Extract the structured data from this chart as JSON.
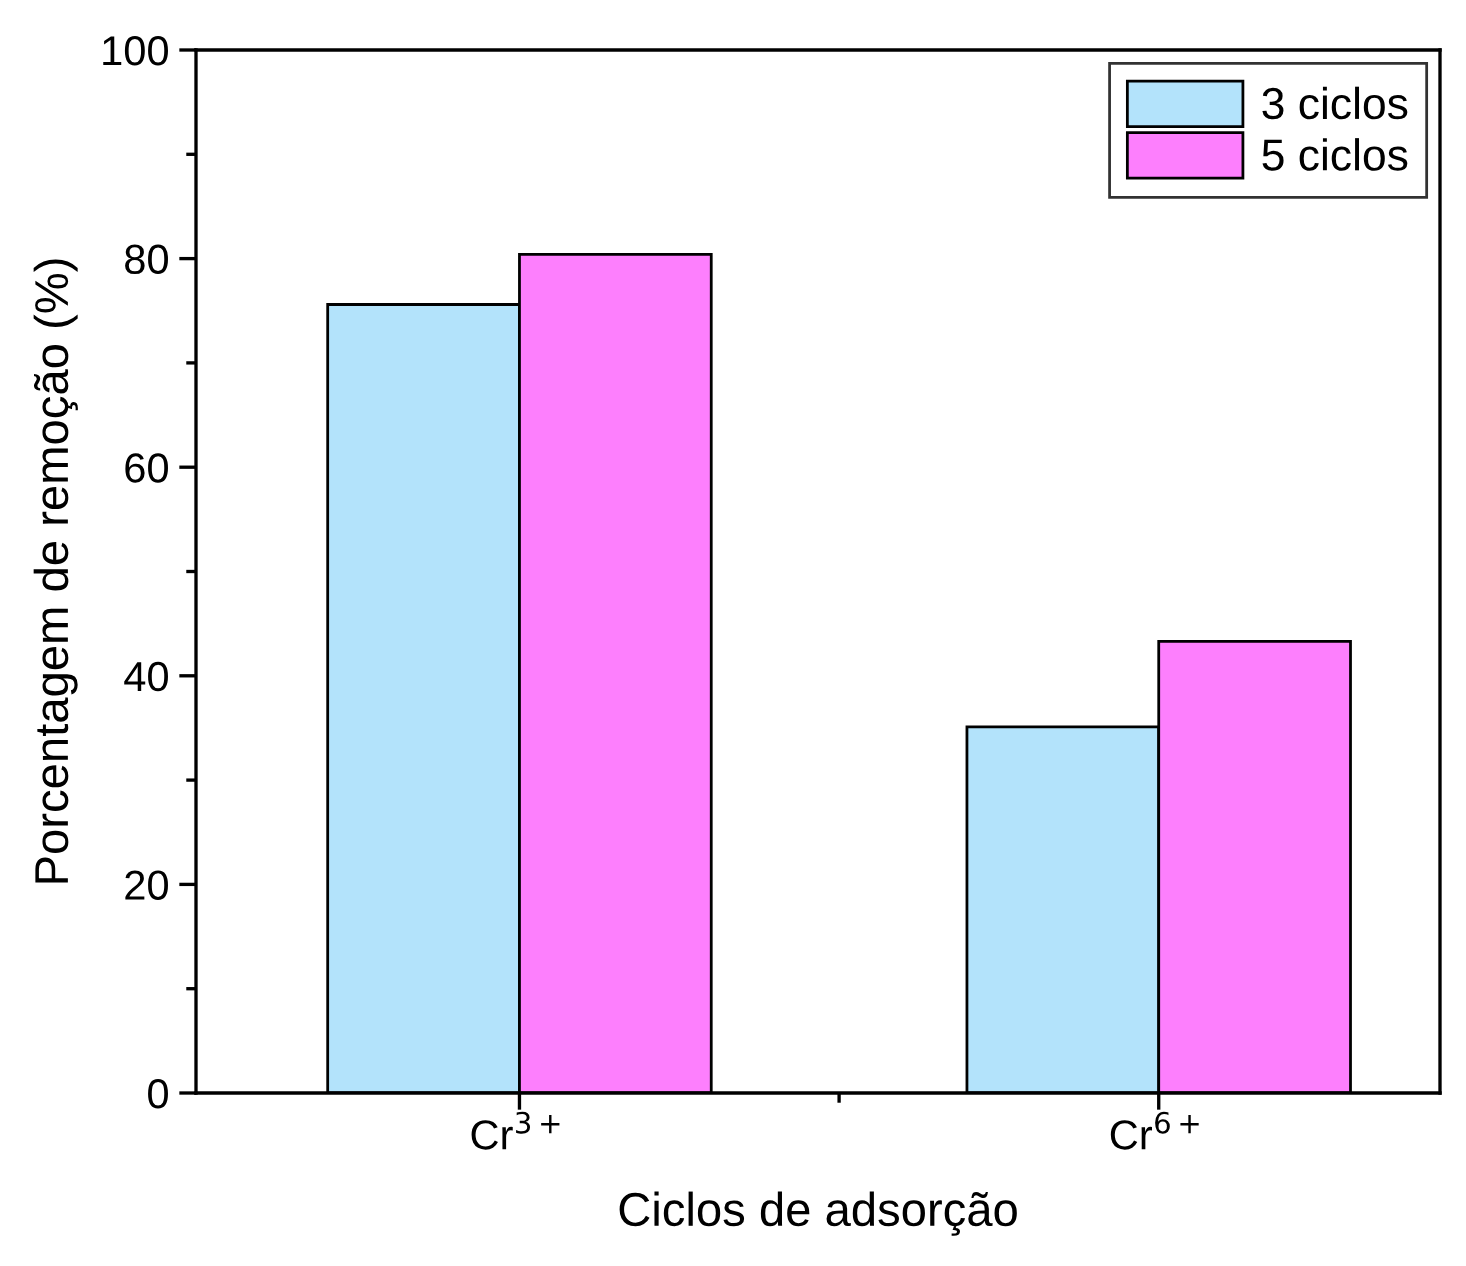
{
  "chart_data": {
    "type": "bar",
    "xlabel": "Ciclos de adsorção",
    "ylabel": "Porcentagem de remoção (%)",
    "categories": [
      "Cr$^{3+}$",
      "Cr$^{6+}$"
    ],
    "series": [
      {
        "name": "3 ciclos",
        "color": "#b3e3fb",
        "values": [
          75.6,
          35.1
        ]
      },
      {
        "name": "5 ciclos",
        "color": "#fd7ffd",
        "values": [
          80.4,
          43.3
        ]
      }
    ],
    "ylim": [
      0,
      100
    ],
    "yticks": [
      0,
      20,
      40,
      60,
      80,
      100
    ],
    "grid": false,
    "legend": "top right"
  }
}
